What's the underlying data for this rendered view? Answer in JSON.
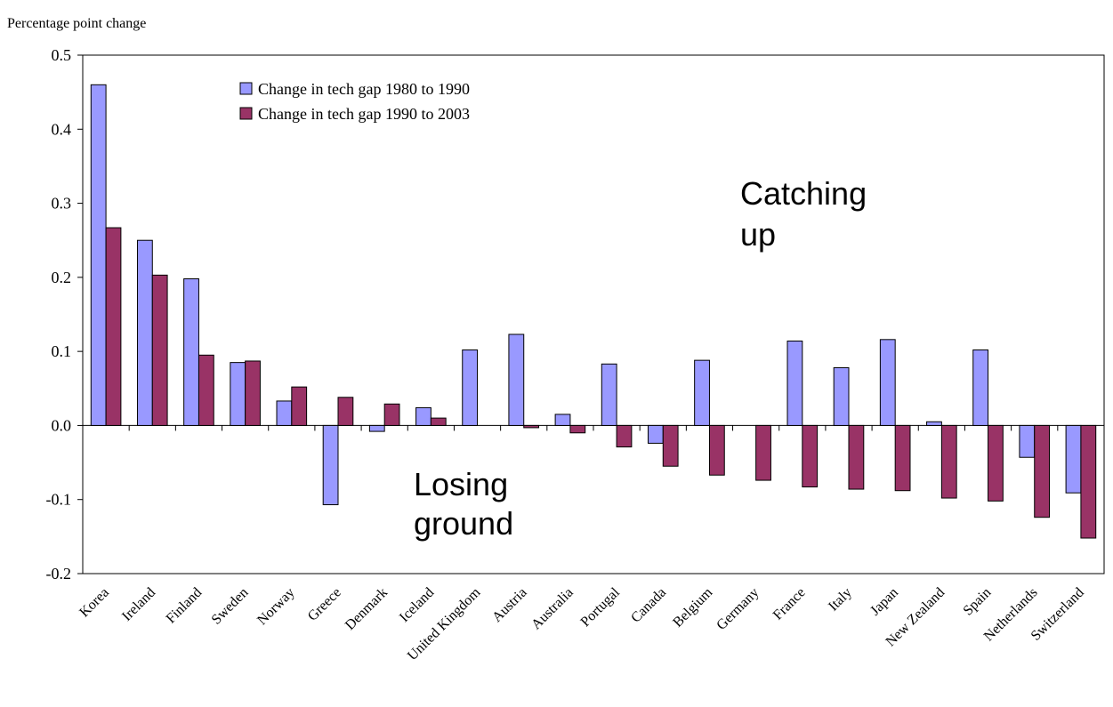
{
  "chart_data": {
    "type": "bar",
    "ylabel": "Percentage point change",
    "xlabel": "",
    "title": "",
    "ylim": [
      -0.2,
      0.5
    ],
    "yticks": [
      -0.2,
      -0.1,
      0.0,
      0.1,
      0.2,
      0.3,
      0.4,
      0.5
    ],
    "ytick_labels": [
      "-0.2",
      "-0.1",
      "0.0",
      "0.1",
      "0.2",
      "0.3",
      "0.4",
      "0.5"
    ],
    "grid": false,
    "legend_position": "top-left inside plot",
    "categories": [
      "Korea",
      "Ireland",
      "Finland",
      "Sweden",
      "Norway",
      "Greece",
      "Denmark",
      "Iceland",
      "United Kingdom",
      "Austria",
      "Australia",
      "Portugal",
      "Canada",
      "Belgium",
      "Germany",
      "France",
      "Italy",
      "Japan",
      "New Zealand",
      "Spain",
      "Netherlands",
      "Switzerland"
    ],
    "series": [
      {
        "name": "Change in tech gap 1980 to 1990",
        "color": "#9999ff",
        "values": [
          0.46,
          0.25,
          0.198,
          0.085,
          0.033,
          -0.107,
          -0.008,
          0.024,
          0.102,
          0.123,
          0.015,
          0.083,
          -0.024,
          0.088,
          0.0,
          0.114,
          0.078,
          0.116,
          0.005,
          0.102,
          -0.043,
          -0.091
        ]
      },
      {
        "name": "Change in tech gap 1990 to 2003",
        "color": "#993366",
        "values": [
          0.267,
          0.203,
          0.095,
          0.087,
          0.052,
          0.038,
          0.029,
          0.01,
          0.0,
          -0.003,
          -0.01,
          -0.029,
          -0.055,
          -0.067,
          -0.074,
          -0.083,
          -0.086,
          -0.088,
          -0.098,
          -0.102,
          -0.124,
          -0.152
        ]
      }
    ],
    "annotations": [
      "Catching up",
      "Losing ground"
    ]
  },
  "annotations": {
    "catching_line1": "Catching",
    "catching_line2": "up",
    "losing_line1": "Losing",
    "losing_line2": "ground"
  }
}
